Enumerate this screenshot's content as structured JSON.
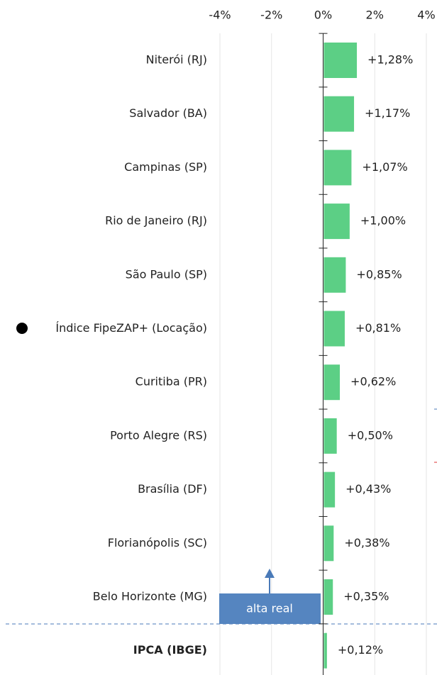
{
  "chart_data": {
    "type": "barh",
    "categories": [
      "Niterói (RJ)",
      "Salvador (BA)",
      "Campinas (SP)",
      "Rio de Janeiro (RJ)",
      "São Paulo (SP)",
      "Índice FipeZAP+ (Locação)",
      "Curitiba (PR)",
      "Porto Alegre (RS)",
      "Brasília (DF)",
      "Florianópolis (SC)",
      "Belo Horizonte (MG)",
      "IPCA (IBGE)"
    ],
    "values": [
      1.28,
      1.17,
      1.07,
      1.0,
      0.85,
      0.81,
      0.62,
      0.5,
      0.43,
      0.38,
      0.35,
      0.12
    ],
    "value_labels": [
      "+1,28%",
      "+1,17%",
      "+1,07%",
      "+1,00%",
      "+0,85%",
      "+0,81%",
      "+0,62%",
      "+0,50%",
      "+0,43%",
      "+0,38%",
      "+0,35%",
      "+0,12%"
    ],
    "color": "#5ccf85",
    "xlim": [
      -4,
      4
    ],
    "xticks": [
      {
        "value": -4,
        "label": "-4%"
      },
      {
        "value": -2,
        "label": "-2%"
      },
      {
        "value": 0,
        "label": "0%"
      },
      {
        "value": 2,
        "label": "2%"
      },
      {
        "value": 4,
        "label": "4%"
      }
    ],
    "grid": true,
    "annotation": "alta real"
  }
}
